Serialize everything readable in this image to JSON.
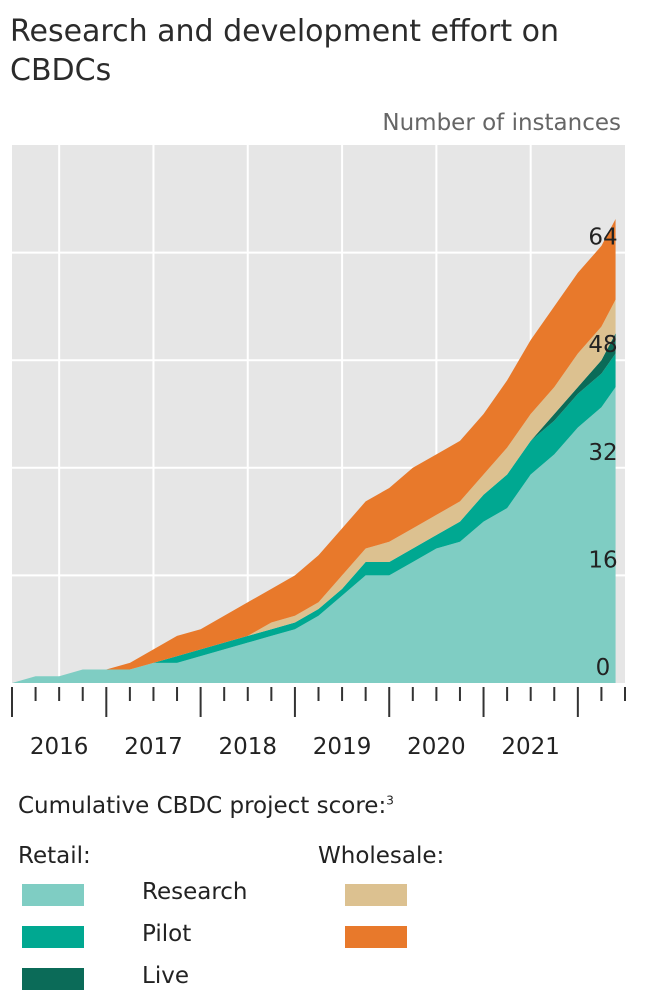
{
  "title": "Research and development effort on CBDCs",
  "unit_label": "Number of instances",
  "colors": {
    "retail_research": "#7fcdc3",
    "retail_pilot": "#00a891",
    "retail_live": "#0b6b58",
    "wholesale_research": "#dcc190",
    "wholesale_pilot": "#e8792b",
    "plot_bg": "#e6e6e6",
    "grid": "#ffffff"
  },
  "legend": {
    "title": "Cumulative CBDC project score:",
    "footnote": "3",
    "retail_label": "Retail:",
    "wholesale_label": "Wholesale:",
    "items": [
      "Research",
      "Pilot",
      "Live"
    ]
  },
  "chart_data": {
    "type": "area",
    "stacked": true,
    "x": [
      2015.0,
      2015.25,
      2015.5,
      2015.75,
      2016.0,
      2016.25,
      2016.5,
      2016.75,
      2017.0,
      2017.25,
      2017.5,
      2017.75,
      2018.0,
      2018.25,
      2018.5,
      2018.75,
      2019.0,
      2019.25,
      2019.5,
      2019.75,
      2020.0,
      2020.25,
      2020.5,
      2020.75,
      2021.0,
      2021.25,
      2021.4
    ],
    "xticks": [
      "2016",
      "2017",
      "2018",
      "2019",
      "2020",
      "2021"
    ],
    "xtick_values": [
      2015.5,
      2016.5,
      2017.5,
      2018.5,
      2019.5,
      2020.5
    ],
    "yticks": [
      0,
      16,
      32,
      48,
      64
    ],
    "ylim": [
      0,
      80
    ],
    "xlim": [
      2015.0,
      2021.5
    ],
    "grid": true,
    "series": [
      {
        "name": "Research",
        "group": "Retail",
        "values": [
          0,
          1,
          1,
          2,
          2,
          2,
          3,
          3,
          4,
          5,
          6,
          7,
          8,
          10,
          13,
          16,
          16,
          18,
          20,
          21,
          24,
          26,
          31,
          34,
          38,
          41,
          44
        ]
      },
      {
        "name": "Pilot",
        "group": "Retail",
        "values": [
          0,
          0,
          0,
          0,
          0,
          0,
          0,
          1,
          1,
          1,
          1,
          1,
          1,
          1,
          1,
          2,
          2,
          2,
          2,
          3,
          4,
          5,
          5,
          5,
          5,
          5,
          5
        ]
      },
      {
        "name": "Live",
        "group": "Retail",
        "values": [
          0,
          0,
          0,
          0,
          0,
          0,
          0,
          0,
          0,
          0,
          0,
          0,
          0,
          0,
          0,
          0,
          0,
          0,
          0,
          0,
          0,
          0,
          0,
          1,
          1,
          2,
          3
        ]
      },
      {
        "name": "Research",
        "group": "Wholesale",
        "values": [
          0,
          0,
          0,
          0,
          0,
          0,
          0,
          0,
          0,
          0,
          0,
          1,
          1,
          1,
          2,
          2,
          3,
          3,
          3,
          3,
          3,
          4,
          4,
          4,
          5,
          5,
          5
        ]
      },
      {
        "name": "Pilot",
        "group": "Wholesale",
        "values": [
          0,
          0,
          0,
          0,
          0,
          1,
          2,
          3,
          3,
          4,
          5,
          5,
          6,
          7,
          7,
          7,
          8,
          9,
          9,
          9,
          9,
          10,
          11,
          12,
          12,
          12,
          12
        ]
      }
    ]
  }
}
